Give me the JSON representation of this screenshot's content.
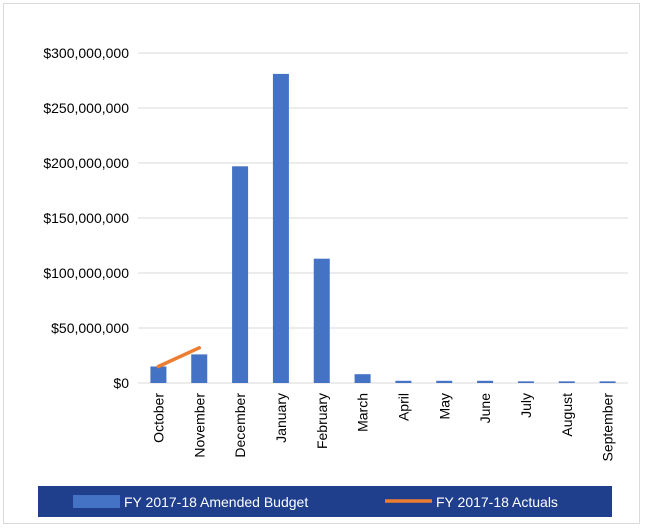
{
  "chart_data": {
    "type": "bar",
    "categories": [
      "October",
      "November",
      "December",
      "January",
      "February",
      "March",
      "April",
      "May",
      "June",
      "July",
      "August",
      "September"
    ],
    "y_ticks": [
      "$0",
      "$50,000,000",
      "$100,000,000",
      "$150,000,000",
      "$200,000,000",
      "$250,000,000",
      "$300,000,000"
    ],
    "ylim": [
      0,
      300000000
    ],
    "grid": true,
    "legend_position": "bottom",
    "series": [
      {
        "name": "FY 2017-18 Amended Budget",
        "type": "bar",
        "color": "#4472C4",
        "values": [
          15000000,
          26000000,
          197000000,
          281000000,
          113000000,
          8000000,
          2000000,
          2000000,
          2000000,
          1500000,
          1500000,
          1500000
        ]
      },
      {
        "name": "FY 2017-18 Actuals",
        "type": "line",
        "color": "#ED7D31",
        "values": [
          15000000,
          32000000,
          null,
          null,
          null,
          null,
          null,
          null,
          null,
          null,
          null,
          null
        ]
      }
    ],
    "legend_background": "#1F3E8C"
  }
}
